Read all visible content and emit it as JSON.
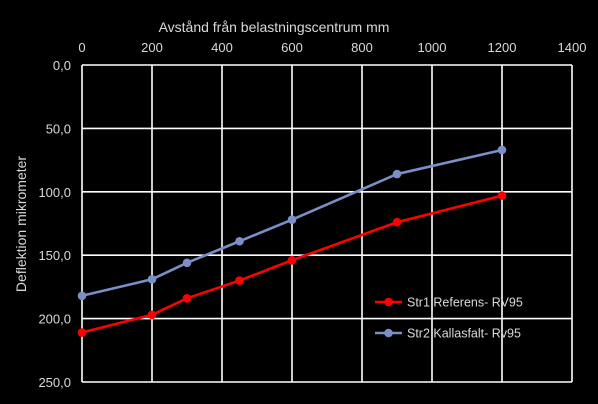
{
  "chart_data": {
    "type": "line",
    "xlabel": "Avstånd från belastningscentrum mm",
    "ylabel": "Deflektion mikrometer",
    "xlim": [
      0,
      1400
    ],
    "ylim": [
      0,
      250
    ],
    "y_inverted": true,
    "x_axis_position": "top",
    "x_ticks": [
      0,
      200,
      400,
      600,
      800,
      1000,
      1200,
      1400
    ],
    "y_ticks": [
      0,
      50,
      100,
      150,
      200,
      250
    ],
    "y_tick_labels": [
      "0,0",
      "50,0",
      "100,0",
      "150,0",
      "200,0",
      "250,0"
    ],
    "grid": true,
    "legend_position": "bottom-right",
    "series": [
      {
        "name": "Str1 Referens- RV95",
        "color": "#ff0000",
        "x": [
          0,
          200,
          300,
          450,
          600,
          900,
          1200
        ],
        "values": [
          211,
          197,
          184,
          170,
          154,
          124,
          103
        ]
      },
      {
        "name": "Str2 Kallasfalt- Rv95",
        "color": "#7a8fc6",
        "x": [
          0,
          200,
          300,
          450,
          600,
          900,
          1200
        ],
        "values": [
          182,
          169,
          156,
          139,
          122,
          86,
          67
        ]
      }
    ]
  }
}
